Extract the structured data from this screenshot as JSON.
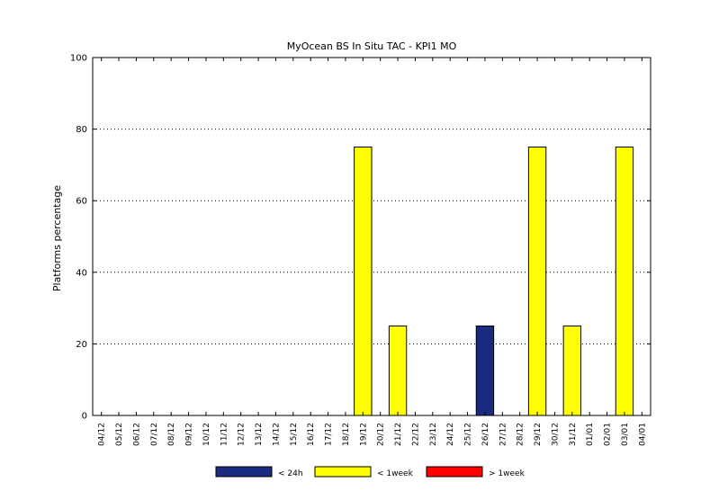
{
  "chart_data": {
    "type": "bar",
    "title": "MyOcean  BS In Situ TAC - KPI1  MO",
    "xlabel": "",
    "ylabel": "Platforms percentage",
    "ylim": [
      0,
      100
    ],
    "yticks": [
      0,
      20,
      40,
      60,
      80,
      100
    ],
    "grid": "horizontal-dotted",
    "legend_placement": "bottom",
    "categories": [
      "04/12",
      "05/12",
      "06/12",
      "07/12",
      "08/12",
      "09/12",
      "10/12",
      "11/12",
      "12/12",
      "13/12",
      "14/12",
      "15/12",
      "16/12",
      "17/12",
      "18/12",
      "19/12",
      "20/12",
      "21/12",
      "22/12",
      "23/12",
      "24/12",
      "25/12",
      "26/12",
      "27/12",
      "28/12",
      "29/12",
      "30/12",
      "31/12",
      "01/01",
      "02/01",
      "03/01",
      "04/01"
    ],
    "series": [
      {
        "name": "< 24h",
        "color": "#1a2a80",
        "values": [
          0,
          0,
          0,
          0,
          0,
          0,
          0,
          0,
          0,
          0,
          0,
          0,
          0,
          0,
          0,
          0,
          0,
          0,
          0,
          0,
          0,
          0,
          25,
          0,
          0,
          0,
          0,
          0,
          0,
          0,
          0,
          0
        ]
      },
      {
        "name": "< 1week",
        "color": "#ffff00",
        "values": [
          0,
          0,
          0,
          0,
          0,
          0,
          0,
          0,
          0,
          0,
          0,
          0,
          0,
          0,
          0,
          75,
          0,
          25,
          0,
          0,
          0,
          0,
          0,
          0,
          0,
          75,
          0,
          25,
          0,
          0,
          75,
          0
        ]
      },
      {
        "name": "> 1week",
        "color": "#ff0000",
        "values": [
          0,
          0,
          0,
          0,
          0,
          0,
          0,
          0,
          0,
          0,
          0,
          0,
          0,
          0,
          0,
          0,
          0,
          0,
          0,
          0,
          0,
          0,
          0,
          0,
          0,
          0,
          0,
          0,
          0,
          0,
          0,
          0
        ]
      }
    ]
  }
}
